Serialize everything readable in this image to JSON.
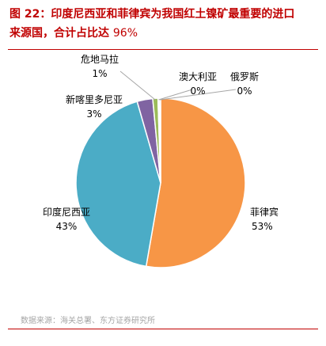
{
  "title": {
    "line1": "图 22：印度尼西亚和菲律宾为我国红土镍矿最重要的进口",
    "line2": "来源国，合计占比达",
    "line2_value": "96%"
  },
  "source": "数据来源：海关总署、东方证券研究所",
  "colors": {
    "accent": "#c00000",
    "source_text": "#a6a6a6"
  },
  "chart_data": {
    "type": "pie",
    "slices": [
      {
        "name": "菲律宾",
        "value": 53,
        "label": "53%",
        "color": "#f79646"
      },
      {
        "name": "印度尼西亚",
        "value": 43,
        "label": "43%",
        "color": "#4bacc6"
      },
      {
        "name": "新喀里多尼亚",
        "value": 3,
        "label": "3%",
        "color": "#8064a2"
      },
      {
        "name": "危地马拉",
        "value": 1,
        "label": "1%",
        "color": "#9bbb59"
      },
      {
        "name": "澳大利亚",
        "value": 0,
        "label": "0%",
        "color": "#c0504d"
      },
      {
        "name": "俄罗斯",
        "value": 0,
        "label": "0%",
        "color": "#f79646"
      }
    ]
  }
}
